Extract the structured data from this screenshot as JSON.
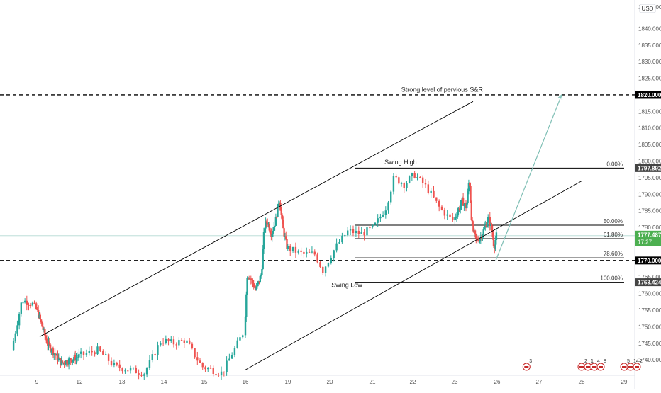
{
  "chart_data": {
    "type": "candlestick",
    "currency_label": "USD",
    "y_axis": {
      "min": 1737,
      "max": 1851,
      "ticks": [
        1740,
        1745,
        1750,
        1755,
        1760,
        1765,
        1770,
        1775,
        1780,
        1785,
        1790,
        1795,
        1800,
        1805,
        1810,
        1815,
        1820,
        1825,
        1830,
        1835,
        1840
      ],
      "tick_labels": [
        "1740.000",
        "1745.000",
        "1750.000",
        "1755.000",
        "1760.000",
        "1765.000",
        "1770.000",
        "1775.000",
        "1780.000",
        "1785.000",
        "1790.000",
        "1795.000",
        "1800.000",
        "1805.000",
        "1810.000",
        "1815.000",
        "1820.000",
        "1825.000",
        "1830.000",
        "1835.000",
        "1840.000"
      ],
      "top_label": "1845.000"
    },
    "x_axis": {
      "ticks": [
        {
          "label": "9",
          "day": 9
        },
        {
          "label": "12",
          "day": 12
        },
        {
          "label": "13",
          "day": 13
        },
        {
          "label": "14",
          "day": 14
        },
        {
          "label": "15",
          "day": 15
        },
        {
          "label": "16",
          "day": 16
        },
        {
          "label": "19",
          "day": 19
        },
        {
          "label": "20",
          "day": 20
        },
        {
          "label": "21",
          "day": 21
        },
        {
          "label": "22",
          "day": 22
        },
        {
          "label": "23",
          "day": 23
        },
        {
          "label": "26",
          "day": 26
        },
        {
          "label": "27",
          "day": 27
        },
        {
          "label": "28",
          "day": 28
        },
        {
          "label": "29",
          "day": 29
        }
      ],
      "day_range": [
        8.1,
        29.3
      ]
    },
    "price_path": [
      {
        "day": 8.2,
        "price": 1743
      },
      {
        "day": 8.55,
        "price": 1758
      },
      {
        "day": 8.9,
        "price": 1757
      },
      {
        "day": 9.3,
        "price": 1752
      },
      {
        "day": 9.8,
        "price": 1745
      },
      {
        "day": 10.3,
        "price": 1742
      },
      {
        "day": 10.8,
        "price": 1739
      },
      {
        "day": 12.0,
        "price": 1741
      },
      {
        "day": 12.5,
        "price": 1743
      },
      {
        "day": 12.9,
        "price": 1738
      },
      {
        "day": 13.6,
        "price": 1736
      },
      {
        "day": 14.0,
        "price": 1746
      },
      {
        "day": 14.3,
        "price": 1745
      },
      {
        "day": 14.6,
        "price": 1746
      },
      {
        "day": 15.0,
        "price": 1738
      },
      {
        "day": 15.5,
        "price": 1736
      },
      {
        "day": 16.0,
        "price": 1748
      },
      {
        "day": 16.2,
        "price": 1766
      },
      {
        "day": 16.5,
        "price": 1764
      },
      {
        "day": 16.8,
        "price": 1761
      },
      {
        "day": 17.2,
        "price": 1766
      },
      {
        "day": 17.4,
        "price": 1780
      },
      {
        "day": 17.6,
        "price": 1782
      },
      {
        "day": 17.9,
        "price": 1778
      },
      {
        "day": 18.2,
        "price": 1782
      },
      {
        "day": 18.45,
        "price": 1789
      },
      {
        "day": 18.7,
        "price": 1780
      },
      {
        "day": 19.0,
        "price": 1774
      },
      {
        "day": 19.4,
        "price": 1772
      },
      {
        "day": 19.7,
        "price": 1772
      },
      {
        "day": 19.9,
        "price": 1767
      },
      {
        "day": 20.2,
        "price": 1774
      },
      {
        "day": 20.5,
        "price": 1779
      },
      {
        "day": 20.8,
        "price": 1778
      },
      {
        "day": 21.1,
        "price": 1780
      },
      {
        "day": 21.4,
        "price": 1786
      },
      {
        "day": 21.6,
        "price": 1795
      },
      {
        "day": 21.85,
        "price": 1793
      },
      {
        "day": 22.1,
        "price": 1796
      },
      {
        "day": 22.4,
        "price": 1792
      },
      {
        "day": 22.7,
        "price": 1786
      },
      {
        "day": 23.0,
        "price": 1782
      },
      {
        "day": 23.3,
        "price": 1785
      },
      {
        "day": 23.6,
        "price": 1788
      },
      {
        "day": 23.9,
        "price": 1786
      },
      {
        "day": 24.1,
        "price": 1795
      },
      {
        "day": 24.3,
        "price": 1780
      },
      {
        "day": 24.6,
        "price": 1776
      },
      {
        "day": 24.9,
        "price": 1777
      },
      {
        "day": 25.2,
        "price": 1780
      },
      {
        "day": 25.45,
        "price": 1783
      },
      {
        "day": 25.7,
        "price": 1779
      },
      {
        "day": 25.85,
        "price": 1774
      },
      {
        "day": 26.0,
        "price": 1777.5
      }
    ],
    "horizontal_levels": [
      {
        "price": 1820,
        "style": "dashed",
        "label": "Strong level of pervious S&R",
        "badge": "1820.000"
      },
      {
        "price": 1770,
        "style": "dashed",
        "badge": "1770.000"
      },
      {
        "price": 1777.487,
        "style": "thin",
        "badge": "1777.487",
        "badge_sub": "17:27"
      }
    ],
    "fibonacci": {
      "start_day": 20.6,
      "end_day": 29.0,
      "levels": [
        {
          "ratio": "0.00%",
          "price": 1797.892,
          "badge": "1797.892"
        },
        {
          "ratio": "50.00%",
          "price": 1780.66
        },
        {
          "ratio": "61.80%",
          "price": 1776.59
        },
        {
          "ratio": "78.60%",
          "price": 1770.8
        },
        {
          "ratio": "100.00%",
          "price": 1763.424,
          "badge": "1763.424"
        }
      ]
    },
    "channel": {
      "upper": {
        "start": {
          "day": 9.2,
          "price": 1747
        },
        "end": {
          "day": 24.3,
          "price": 1818
        }
      },
      "lower": {
        "start": {
          "day": 16.0,
          "price": 1737
        },
        "end": {
          "day": 28.0,
          "price": 1794
        }
      }
    },
    "projection": {
      "start": {
        "day": 25.9,
        "price": 1770
      },
      "end": {
        "day": 28.0,
        "price": 1820
      }
    },
    "annotations": [
      {
        "text": "Swing High",
        "day": 21.7,
        "price": 1799
      },
      {
        "text": "Swing Low",
        "day": 20.4,
        "price": 1762
      },
      {
        "text": "Strong level of pervious S&R",
        "day": 22.7,
        "price": 1821
      }
    ],
    "event_markers": [
      {
        "day": 26.7,
        "text": "3"
      },
      {
        "day": 28.0,
        "text": "2"
      },
      {
        "day": 28.15,
        "text": "1"
      },
      {
        "day": 28.3,
        "text": "4"
      },
      {
        "day": 28.45,
        "text": "8"
      },
      {
        "day": 29.0,
        "text": "5"
      },
      {
        "day": 29.15,
        "text": "14"
      },
      {
        "day": 29.3,
        "text": "2"
      }
    ],
    "colors": {
      "up": "#26a69a",
      "down": "#ef5350",
      "level": "#000000",
      "fib": "#000000",
      "channel": "#000000",
      "projection": "#7fbfb5",
      "current": "#4caf50",
      "badge_dark": "#000000",
      "badge_grey": "#444444",
      "grid_text": "#555555"
    }
  }
}
